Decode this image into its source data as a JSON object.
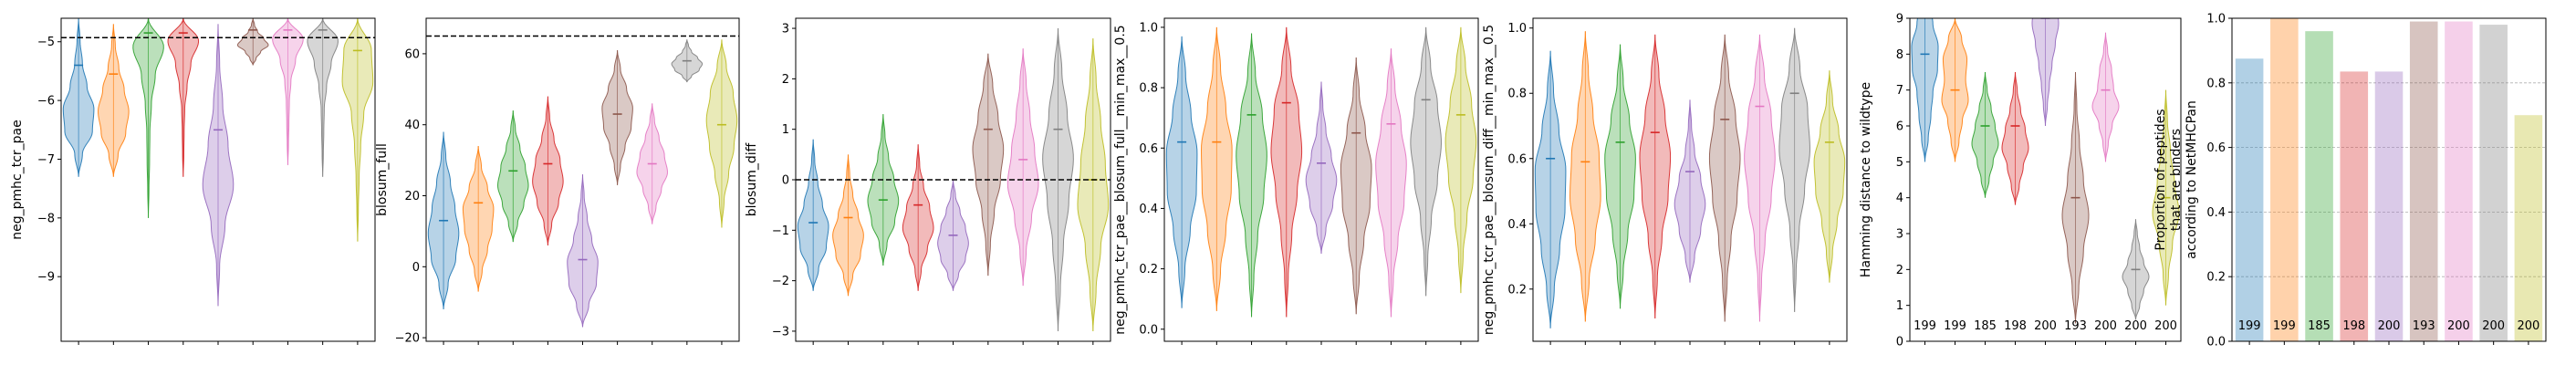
{
  "colors": [
    "#1f77b4",
    "#ff7f0e",
    "#2ca02c",
    "#d62728",
    "#9467bd",
    "#8c564b",
    "#e377c2",
    "#7f7f7f",
    "#bcbd22"
  ],
  "chart_data": [
    {
      "type": "violin",
      "ylabel": "neg_pmhc_tcr_pae",
      "ylim": [
        -10.1,
        -4.6
      ],
      "yticks": [
        -9,
        -8,
        -7,
        -6,
        -5
      ],
      "hline": -4.93,
      "series": [
        {
          "min": -7.3,
          "max": -4.6,
          "median": -5.4,
          "profile": [
            0.0,
            0.25,
            0.9,
            1.0,
            0.55,
            0.25,
            0.1,
            0.0
          ]
        },
        {
          "min": -7.3,
          "max": -4.7,
          "median": -5.55,
          "profile": [
            0.0,
            0.3,
            0.8,
            1.0,
            0.7,
            0.35,
            0.12,
            0.0
          ]
        },
        {
          "min": -8.0,
          "max": -4.6,
          "median": -4.85,
          "profile": [
            0.0,
            0.04,
            0.08,
            0.1,
            0.2,
            0.45,
            1.0,
            0.0
          ]
        },
        {
          "min": -7.3,
          "max": -4.6,
          "median": -4.85,
          "profile": [
            0.0,
            0.04,
            0.06,
            0.1,
            0.25,
            0.5,
            1.0,
            0.0
          ]
        },
        {
          "min": -9.5,
          "max": -4.7,
          "median": -6.5,
          "profile": [
            0.0,
            0.1,
            0.45,
            1.0,
            0.65,
            0.3,
            0.1,
            0.0
          ]
        },
        {
          "min": -5.4,
          "max": -4.6,
          "median": -4.8,
          "profile": [
            0.0,
            0.2,
            0.5,
            1.0,
            0.7,
            0.3,
            0.1,
            0.0
          ]
        },
        {
          "min": -7.1,
          "max": -4.6,
          "median": -4.8,
          "profile": [
            0.0,
            0.04,
            0.07,
            0.1,
            0.2,
            0.5,
            1.0,
            0.0
          ]
        },
        {
          "min": -7.3,
          "max": -4.6,
          "median": -4.8,
          "profile": [
            0.0,
            0.04,
            0.07,
            0.1,
            0.25,
            0.55,
            1.0,
            0.0
          ]
        },
        {
          "min": -8.4,
          "max": -4.6,
          "median": -5.15,
          "profile": [
            0.0,
            0.05,
            0.1,
            0.2,
            0.4,
            1.0,
            0.9,
            0.0
          ]
        }
      ]
    },
    {
      "type": "violin",
      "ylabel": "blosum_full",
      "ylim": [
        -21,
        70
      ],
      "yticks": [
        -20,
        0,
        20,
        40,
        60
      ],
      "hline": 65,
      "series": [
        {
          "min": -12,
          "max": 38,
          "median": 13,
          "profile": [
            0.0,
            0.3,
            0.8,
            1.0,
            0.75,
            0.45,
            0.15,
            0.0
          ]
        },
        {
          "min": -7,
          "max": 34,
          "median": 18,
          "profile": [
            0.0,
            0.25,
            0.6,
            0.9,
            1.0,
            0.6,
            0.2,
            0.0
          ]
        },
        {
          "min": 7,
          "max": 44,
          "median": 27,
          "profile": [
            0.0,
            0.3,
            0.7,
            1.0,
            0.8,
            0.45,
            0.15,
            0.0
          ]
        },
        {
          "min": 6,
          "max": 48,
          "median": 29,
          "profile": [
            0.0,
            0.25,
            0.7,
            1.0,
            0.8,
            0.4,
            0.12,
            0.0
          ]
        },
        {
          "min": -17,
          "max": 26,
          "median": 2,
          "profile": [
            0.0,
            0.4,
            0.9,
            1.0,
            0.6,
            0.3,
            0.1,
            0.0
          ]
        },
        {
          "min": 23,
          "max": 61,
          "median": 43,
          "profile": [
            0.0,
            0.2,
            0.5,
            0.9,
            1.0,
            0.6,
            0.2,
            0.0
          ]
        },
        {
          "min": 12,
          "max": 46,
          "median": 29,
          "profile": [
            0.0,
            0.25,
            0.6,
            1.0,
            0.8,
            0.45,
            0.15,
            0.0
          ]
        },
        {
          "min": 52,
          "max": 64,
          "median": 58,
          "profile": [
            0.0,
            0.3,
            0.8,
            1.0,
            0.7,
            0.3,
            0.1,
            0.0
          ]
        },
        {
          "min": 11,
          "max": 64,
          "median": 40,
          "profile": [
            0.0,
            0.15,
            0.45,
            0.8,
            1.0,
            0.75,
            0.3,
            0.0
          ]
        }
      ]
    },
    {
      "type": "violin",
      "ylabel": "blosum_diff",
      "ylim": [
        -3.2,
        3.2
      ],
      "yticks": [
        -3,
        -2,
        -1,
        0,
        1,
        2,
        3
      ],
      "hline": 0,
      "series": [
        {
          "min": -2.2,
          "max": 0.8,
          "median": -0.85,
          "profile": [
            0.0,
            0.35,
            0.85,
            1.0,
            0.6,
            0.3,
            0.1,
            0.0
          ]
        },
        {
          "min": -2.3,
          "max": 0.5,
          "median": -0.75,
          "profile": [
            0.0,
            0.3,
            0.8,
            1.0,
            0.65,
            0.3,
            0.1,
            0.0
          ]
        },
        {
          "min": -1.7,
          "max": 1.3,
          "median": -0.4,
          "profile": [
            0.0,
            0.25,
            0.75,
            1.0,
            0.7,
            0.35,
            0.12,
            0.0
          ]
        },
        {
          "min": -2.2,
          "max": 0.7,
          "median": -0.5,
          "profile": [
            0.0,
            0.2,
            0.6,
            1.0,
            0.75,
            0.35,
            0.1,
            0.0
          ]
        },
        {
          "min": -2.2,
          "max": 0.0,
          "median": -1.1,
          "profile": [
            0.0,
            0.35,
            0.8,
            1.0,
            0.8,
            0.45,
            0.15,
            0.0
          ]
        },
        {
          "min": -1.9,
          "max": 2.5,
          "median": 1.0,
          "profile": [
            0.0,
            0.15,
            0.4,
            0.8,
            1.0,
            0.65,
            0.3,
            0.0
          ]
        },
        {
          "min": -2.1,
          "max": 2.6,
          "median": 0.4,
          "profile": [
            0.0,
            0.2,
            0.55,
            1.0,
            0.75,
            0.45,
            0.2,
            0.0
          ]
        },
        {
          "min": -3.0,
          "max": 3.0,
          "median": 1.0,
          "profile": [
            0.0,
            0.15,
            0.35,
            0.7,
            1.0,
            0.6,
            0.25,
            0.0
          ]
        },
        {
          "min": -3.0,
          "max": 2.8,
          "median": 0.0,
          "profile": [
            0.0,
            0.2,
            0.5,
            1.0,
            0.8,
            0.5,
            0.2,
            0.0
          ]
        }
      ]
    },
    {
      "type": "violin",
      "ylabel": "neg_pmhc_tcr_pae__blosum_full__min_max__0.5",
      "ylim": [
        -0.04,
        1.03
      ],
      "yticks": [
        0.0,
        0.2,
        0.4,
        0.6,
        0.8,
        1.0
      ],
      "series": [
        {
          "min": 0.07,
          "max": 0.97,
          "median": 0.62,
          "profile": [
            0.0,
            0.2,
            0.55,
            0.95,
            1.0,
            0.6,
            0.25,
            0.0
          ]
        },
        {
          "min": 0.06,
          "max": 1.0,
          "median": 0.62,
          "profile": [
            0.0,
            0.25,
            0.6,
            0.95,
            1.0,
            0.6,
            0.25,
            0.0
          ]
        },
        {
          "min": 0.04,
          "max": 0.98,
          "median": 0.71,
          "profile": [
            0.0,
            0.15,
            0.4,
            0.8,
            1.0,
            0.7,
            0.25,
            0.0
          ]
        },
        {
          "min": 0.04,
          "max": 1.0,
          "median": 0.75,
          "profile": [
            0.0,
            0.12,
            0.35,
            0.7,
            1.0,
            0.8,
            0.3,
            0.0
          ]
        },
        {
          "min": 0.25,
          "max": 0.82,
          "median": 0.55,
          "profile": [
            0.0,
            0.3,
            0.75,
            1.0,
            0.65,
            0.3,
            0.1,
            0.0
          ]
        },
        {
          "min": 0.05,
          "max": 0.9,
          "median": 0.65,
          "profile": [
            0.0,
            0.2,
            0.5,
            0.9,
            1.0,
            0.6,
            0.2,
            0.0
          ]
        },
        {
          "min": 0.04,
          "max": 0.93,
          "median": 0.68,
          "profile": [
            0.0,
            0.15,
            0.45,
            0.85,
            1.0,
            0.65,
            0.25,
            0.0
          ]
        },
        {
          "min": 0.11,
          "max": 1.0,
          "median": 0.76,
          "profile": [
            0.0,
            0.12,
            0.35,
            0.75,
            1.0,
            0.75,
            0.3,
            0.0
          ]
        },
        {
          "min": 0.12,
          "max": 1.0,
          "median": 0.71,
          "profile": [
            0.0,
            0.15,
            0.4,
            0.8,
            1.0,
            0.7,
            0.3,
            0.0
          ]
        }
      ]
    },
    {
      "type": "violin",
      "ylabel": "neg_pmhc_tcr_pae__blosum_diff__min_max__0.5",
      "ylim": [
        0.04,
        1.03
      ],
      "yticks": [
        0.2,
        0.4,
        0.6,
        0.8,
        1.0
      ],
      "series": [
        {
          "min": 0.08,
          "max": 0.93,
          "median": 0.6,
          "profile": [
            0.0,
            0.25,
            0.6,
            0.95,
            1.0,
            0.55,
            0.2,
            0.0
          ]
        },
        {
          "min": 0.1,
          "max": 0.99,
          "median": 0.59,
          "profile": [
            0.0,
            0.25,
            0.65,
            1.0,
            0.9,
            0.5,
            0.2,
            0.0
          ]
        },
        {
          "min": 0.14,
          "max": 0.95,
          "median": 0.65,
          "profile": [
            0.0,
            0.2,
            0.5,
            0.9,
            1.0,
            0.6,
            0.2,
            0.0
          ]
        },
        {
          "min": 0.11,
          "max": 0.98,
          "median": 0.68,
          "profile": [
            0.0,
            0.15,
            0.45,
            0.85,
            1.0,
            0.65,
            0.25,
            0.0
          ]
        },
        {
          "min": 0.22,
          "max": 0.78,
          "median": 0.56,
          "profile": [
            0.0,
            0.3,
            0.7,
            1.0,
            0.7,
            0.3,
            0.1,
            0.0
          ]
        },
        {
          "min": 0.1,
          "max": 0.98,
          "median": 0.72,
          "profile": [
            0.0,
            0.15,
            0.4,
            0.8,
            1.0,
            0.7,
            0.25,
            0.0
          ]
        },
        {
          "min": 0.1,
          "max": 0.98,
          "median": 0.76,
          "profile": [
            0.0,
            0.12,
            0.35,
            0.75,
            1.0,
            0.75,
            0.3,
            0.0
          ]
        },
        {
          "min": 0.13,
          "max": 1.0,
          "median": 0.8,
          "profile": [
            0.0,
            0.1,
            0.3,
            0.65,
            1.0,
            0.85,
            0.35,
            0.0
          ]
        },
        {
          "min": 0.22,
          "max": 0.87,
          "median": 0.65,
          "profile": [
            0.0,
            0.2,
            0.5,
            0.9,
            1.0,
            0.6,
            0.2,
            0.0
          ]
        }
      ]
    },
    {
      "type": "violin",
      "ylabel": "Hamming distance to wildtype",
      "ylim": [
        0,
        9
      ],
      "yticks": [
        0,
        1,
        2,
        3,
        4,
        5,
        6,
        7,
        8,
        9
      ],
      "clip": true,
      "series": [
        {
          "min": 5,
          "max": 9.5,
          "median": 8,
          "profile": [
            0.0,
            0.25,
            0.45,
            0.6,
            0.95,
            1.0,
            0.6,
            0.2
          ]
        },
        {
          "min": 5,
          "max": 9,
          "median": 7,
          "profile": [
            0.0,
            0.3,
            0.55,
            1.0,
            0.8,
            0.9,
            0.5,
            0.0
          ]
        },
        {
          "min": 4,
          "max": 7.5,
          "median": 6,
          "profile": [
            0.0,
            0.3,
            0.6,
            1.0,
            0.75,
            0.45,
            0.15,
            0.0
          ]
        },
        {
          "min": 3.8,
          "max": 7.5,
          "median": 6,
          "profile": [
            0.0,
            0.3,
            0.6,
            1.0,
            0.75,
            0.4,
            0.15,
            0.0
          ]
        },
        {
          "min": 6,
          "max": 10,
          "median": 9,
          "profile": [
            0.0,
            0.15,
            0.3,
            0.5,
            0.75,
            1.0,
            0.8,
            0.4
          ]
        },
        {
          "min": 0.5,
          "max": 7.5,
          "median": 4,
          "profile": [
            0.0,
            0.25,
            0.6,
            1.0,
            0.6,
            0.3,
            0.1,
            0.0
          ]
        },
        {
          "min": 5,
          "max": 8.6,
          "median": 7,
          "profile": [
            0.0,
            0.2,
            0.5,
            1.0,
            0.6,
            0.45,
            0.15,
            0.0
          ]
        },
        {
          "min": 0.6,
          "max": 3.4,
          "median": 2,
          "profile": [
            0.0,
            0.3,
            0.6,
            1.0,
            0.6,
            0.3,
            0.12,
            0.0
          ]
        },
        {
          "min": 1,
          "max": 7,
          "median": 4,
          "profile": [
            0.0,
            0.2,
            0.5,
            1.0,
            0.65,
            0.35,
            0.12,
            0.0
          ]
        }
      ],
      "counts": [
        "199",
        "199",
        "185",
        "198",
        "200",
        "193",
        "200",
        "200",
        "200"
      ]
    },
    {
      "type": "bar",
      "ylabel": "Proportion of peptides\nthat are binders\naccording to NetMHCPan",
      "ylim": [
        0,
        1.0
      ],
      "yticks": [
        0.0,
        0.2,
        0.4,
        0.6,
        0.8,
        1.0
      ],
      "ygrid": true,
      "values": [
        0.875,
        1.0,
        0.96,
        0.835,
        0.835,
        0.99,
        0.99,
        0.98,
        0.7
      ],
      "counts": [
        "199",
        "199",
        "185",
        "198",
        "200",
        "193",
        "200",
        "200",
        "200"
      ]
    }
  ]
}
